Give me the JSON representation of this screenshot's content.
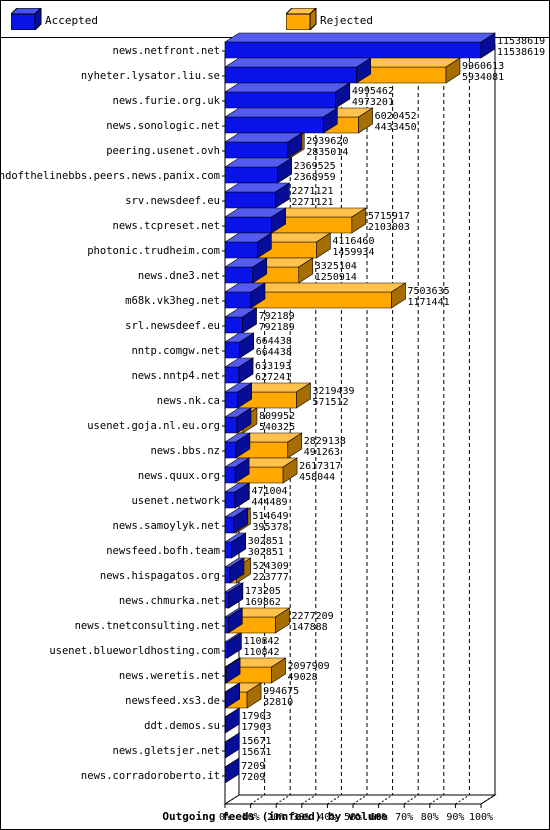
{
  "legend": {
    "accepted_label": "Accepted",
    "rejected_label": "Rejected",
    "accepted_color": "#0a14e8",
    "rejected_color": "#ffa800"
  },
  "chart_data": {
    "type": "bar",
    "orientation": "horizontal",
    "stacked": true,
    "xlabel": "Outgoing feeds (innfeed) by volume",
    "x_ticks": [
      "0%",
      "10%",
      "20%",
      "30%",
      "40%",
      "50%",
      "60%",
      "70%",
      "80%",
      "90%",
      "100%"
    ],
    "xlim": [
      0,
      11538619
    ],
    "grid": true,
    "categories": [
      "news.netfront.net",
      "nyheter.lysator.liu.se",
      "news.furie.org.uk",
      "news.sonologic.net",
      "peering.usenet.ovh",
      "endofthelinebbs.peers.news.panix.com",
      "srv.newsdeef.eu",
      "news.tcpreset.net",
      "photonic.trudheim.com",
      "news.dne3.net",
      "m68k.vk3heg.net",
      "srl.newsdeef.eu",
      "nntp.comgw.net",
      "news.nntp4.net",
      "news.nk.ca",
      "usenet.goja.nl.eu.org",
      "news.bbs.nz",
      "news.quux.org",
      "usenet.network",
      "news.samoylyk.net",
      "newsfeed.bofh.team",
      "news.hispagatos.org",
      "news.chmurka.net",
      "news.tnetconsulting.net",
      "usenet.blueworldhosting.com",
      "news.weretis.net",
      "newsfeed.xs3.de",
      "ddt.demos.su",
      "news.gletsjer.net",
      "news.corradoroberto.it"
    ],
    "offered": [
      11538619,
      9960613,
      4995462,
      6020452,
      2939620,
      2369525,
      2271121,
      5715917,
      4116460,
      3325104,
      7503635,
      792189,
      664438,
      633193,
      3219439,
      809952,
      2829138,
      2617317,
      471004,
      514649,
      302851,
      524309,
      173205,
      2277209,
      110842,
      2097909,
      994675,
      17903,
      15671,
      7209
    ],
    "series": [
      {
        "name": "Accepted",
        "values": [
          11538619,
          5934081,
          4973201,
          4433450,
          2835014,
          2368959,
          2271121,
          2103003,
          1459934,
          1250914,
          1171441,
          792189,
          664438,
          627241,
          571512,
          540325,
          491263,
          458044,
          444489,
          395378,
          302851,
          223777,
          169862,
          147888,
          110842,
          49028,
          32810,
          17903,
          15671,
          7209
        ]
      },
      {
        "name": "Rejected",
        "values": [
          0,
          4026532,
          22261,
          1587002,
          104606,
          566,
          0,
          3612914,
          2656526,
          2074190,
          6332194,
          0,
          0,
          5952,
          2647927,
          269627,
          2337875,
          2159273,
          26515,
          119271,
          0,
          300532,
          3343,
          2129321,
          0,
          2048881,
          961865,
          0,
          0,
          0
        ]
      }
    ]
  }
}
